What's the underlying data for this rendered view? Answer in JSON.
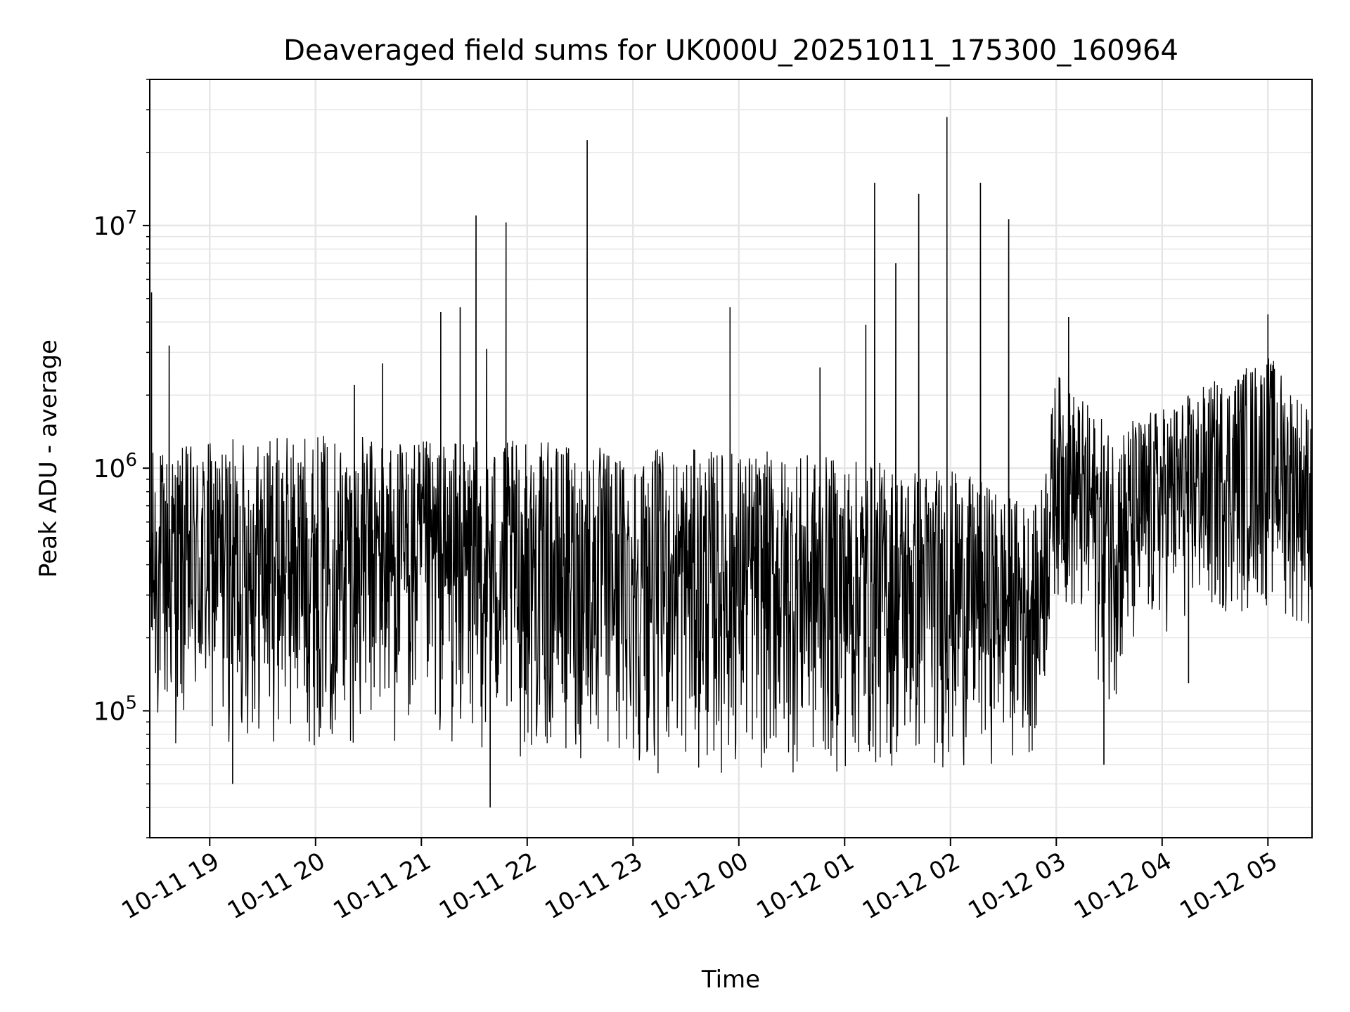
{
  "chart_data": {
    "type": "line",
    "title": "Deaveraged field sums for UK000U_20251011_175300_160964",
    "xlabel": "Time",
    "ylabel": "Peak ADU - average",
    "yscale": "log",
    "ylim": [
      30000,
      40000000
    ],
    "xlim": [
      "2025-10-11 18:26",
      "2025-10-12 05:25"
    ],
    "grid": true,
    "line_color": "#000000",
    "grid_color": "#e6e6e6",
    "x_ticks": [
      {
        "t": "2025-10-11 19:00",
        "label": "10-11 19"
      },
      {
        "t": "2025-10-11 20:00",
        "label": "10-11 20"
      },
      {
        "t": "2025-10-11 21:00",
        "label": "10-11 21"
      },
      {
        "t": "2025-10-11 22:00",
        "label": "10-11 22"
      },
      {
        "t": "2025-10-11 23:00",
        "label": "10-11 23"
      },
      {
        "t": "2025-10-12 00:00",
        "label": "10-12 00"
      },
      {
        "t": "2025-10-12 01:00",
        "label": "10-12 01"
      },
      {
        "t": "2025-10-12 02:00",
        "label": "10-12 02"
      },
      {
        "t": "2025-10-12 03:00",
        "label": "10-12 03"
      },
      {
        "t": "2025-10-12 04:00",
        "label": "10-12 04"
      },
      {
        "t": "2025-10-12 05:00",
        "label": "10-12 05"
      }
    ],
    "y_ticks": [
      {
        "value": 100000,
        "base": "10",
        "exp": "5"
      },
      {
        "value": 1000000,
        "base": "10",
        "exp": "6"
      },
      {
        "value": 10000000,
        "base": "10",
        "exp": "7"
      }
    ],
    "envelope": [
      {
        "t": "2025-10-11 18:26",
        "low": 70000,
        "high": 1200000
      },
      {
        "t": "2025-10-11 19:00",
        "low": 70000,
        "high": 1300000
      },
      {
        "t": "2025-10-11 20:00",
        "low": 70000,
        "high": 1400000
      },
      {
        "t": "2025-10-11 21:00",
        "low": 70000,
        "high": 1300000
      },
      {
        "t": "2025-10-11 22:00",
        "low": 60000,
        "high": 1300000
      },
      {
        "t": "2025-10-11 23:00",
        "low": 55000,
        "high": 1200000
      },
      {
        "t": "2025-10-12 00:00",
        "low": 52000,
        "high": 1200000
      },
      {
        "t": "2025-10-12 01:00",
        "low": 52000,
        "high": 1100000
      },
      {
        "t": "2025-10-12 02:00",
        "low": 55000,
        "high": 1000000
      },
      {
        "t": "2025-10-12 02:50",
        "low": 65000,
        "high": 700000
      },
      {
        "t": "2025-10-12 03:00",
        "low": 300000,
        "high": 2500000
      },
      {
        "t": "2025-10-12 03:30",
        "low": 100000,
        "high": 1500000
      },
      {
        "t": "2025-10-12 04:00",
        "low": 200000,
        "high": 1800000
      },
      {
        "t": "2025-10-12 05:00",
        "low": 250000,
        "high": 3000000
      },
      {
        "t": "2025-10-12 05:25",
        "low": 200000,
        "high": 1800000
      }
    ],
    "spikes": [
      {
        "t": "2025-10-11 18:27",
        "value": 5300000
      },
      {
        "t": "2025-10-11 18:37",
        "value": 3200000
      },
      {
        "t": "2025-10-11 19:13",
        "value": 50000
      },
      {
        "t": "2025-10-11 20:22",
        "value": 2200000
      },
      {
        "t": "2025-10-11 20:38",
        "value": 2700000
      },
      {
        "t": "2025-10-11 21:11",
        "value": 4400000
      },
      {
        "t": "2025-10-11 21:22",
        "value": 4600000
      },
      {
        "t": "2025-10-11 21:31",
        "value": 11000000
      },
      {
        "t": "2025-10-11 21:37",
        "value": 3100000
      },
      {
        "t": "2025-10-11 21:39",
        "value": 40000
      },
      {
        "t": "2025-10-11 21:48",
        "value": 10300000
      },
      {
        "t": "2025-10-11 22:34",
        "value": 22500000
      },
      {
        "t": "2025-10-11 23:55",
        "value": 4600000
      },
      {
        "t": "2025-10-12 00:46",
        "value": 2600000
      },
      {
        "t": "2025-10-12 01:12",
        "value": 3900000
      },
      {
        "t": "2025-10-12 01:17",
        "value": 15000000
      },
      {
        "t": "2025-10-12 01:29",
        "value": 7000000
      },
      {
        "t": "2025-10-12 01:42",
        "value": 13500000
      },
      {
        "t": "2025-10-12 01:58",
        "value": 28000000
      },
      {
        "t": "2025-10-12 02:17",
        "value": 15000000
      },
      {
        "t": "2025-10-12 02:33",
        "value": 10600000
      },
      {
        "t": "2025-10-12 03:07",
        "value": 4200000
      },
      {
        "t": "2025-10-12 03:27",
        "value": 60000
      },
      {
        "t": "2025-10-12 04:15",
        "value": 130000
      },
      {
        "t": "2025-10-12 05:00",
        "value": 4300000
      }
    ]
  }
}
